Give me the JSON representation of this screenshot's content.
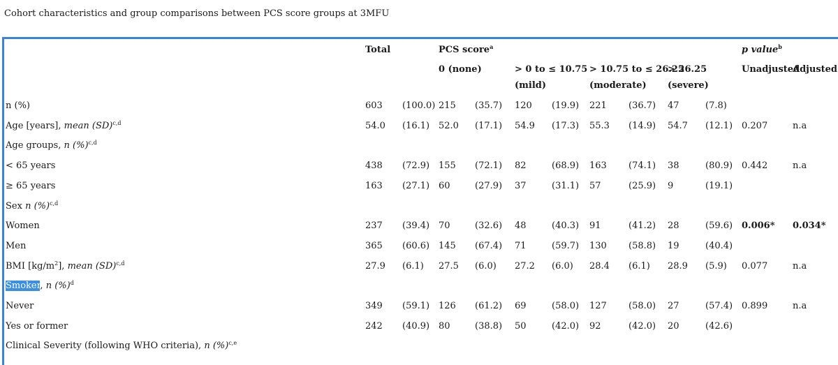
{
  "caption": "Cohort characteristics and group comparisons between PCS score groups at 3MFU",
  "header": {
    "total": "Total",
    "pcs_score": "PCS score",
    "pcs_score_sup": "a",
    "none": "0 (none)",
    "mild_range": "> 0 to ≤ 10.75",
    "mild": "(mild)",
    "moderate_range": "> 10.75 to ≤ 26.25",
    "moderate": "(moderate)",
    "severe_range": "> 26.25",
    "severe": "(severe)",
    "pvalue": "p value",
    "pvalue_sup": "b",
    "unadjusted": "Unadjusted",
    "adjusted": "Adjusted"
  },
  "rows": [
    {
      "label": "n (%)",
      "label_italic": "",
      "sup": "",
      "cells": [
        "603",
        "(100.0)",
        "215",
        "(35.7)",
        "120",
        "(19.9)",
        "221",
        "(36.7)",
        "47",
        "(7.8)",
        "",
        ""
      ]
    },
    {
      "label": "Age [years], ",
      "label_italic": "mean (SD)",
      "sup": "c,d",
      "cells": [
        "54.0",
        "(16.1)",
        "52.0",
        "(17.1)",
        "54.9",
        "(17.3)",
        "55.3",
        "(14.9)",
        "54.7",
        "(12.1)",
        "0.207",
        "n.a"
      ]
    },
    {
      "label": "Age groups, ",
      "label_italic": "n (%)",
      "sup": "c,d",
      "cells": [
        "",
        "",
        "",
        "",
        "",
        "",
        "",
        "",
        "",
        "",
        "",
        ""
      ]
    },
    {
      "label": " < 65 years",
      "label_italic": "",
      "sup": "",
      "cells": [
        "438",
        "(72.9)",
        "155",
        "(72.1)",
        "82",
        "(68.9)",
        "163",
        "(74.1)",
        "38",
        "(80.9)",
        "0.442",
        "n.a"
      ]
    },
    {
      "label": " ≥ 65 years",
      "label_italic": "",
      "sup": "",
      "cells": [
        "163",
        "(27.1)",
        "60",
        "(27.9)",
        "37",
        "(31.1)",
        "57",
        "(25.9)",
        "9",
        "(19.1)",
        "",
        ""
      ]
    },
    {
      "label": "Sex ",
      "label_italic": "n (%)",
      "sup": "c,d",
      "cells": [
        "",
        "",
        "",
        "",
        "",
        "",
        "",
        "",
        "",
        "",
        "",
        ""
      ]
    },
    {
      "label": " Women",
      "label_italic": "",
      "sup": "",
      "cells": [
        "237",
        "(39.4)",
        "70",
        "(32.6)",
        "48",
        "(40.3)",
        "91",
        "(41.2)",
        "28",
        "(59.6)",
        "0.006*",
        "0.034*"
      ]
    },
    {
      "label": " Men",
      "label_italic": "",
      "sup": "",
      "cells": [
        "365",
        "(60.6)",
        "145",
        "(67.4)",
        "71",
        "(59.7)",
        "130",
        "(58.8)",
        "19",
        "(40.4)",
        "",
        ""
      ]
    },
    {
      "label": "BMI [kg/m",
      "label_mid_sup": "2",
      "label_after": "], ",
      "label_italic": "mean (SD)",
      "sup": "c,d",
      "cells": [
        "27.9",
        "(6.1)",
        "27.5",
        "(6.0)",
        "27.2",
        "(6.0)",
        "28.4",
        "(6.1)",
        "28.9",
        "(5.9)",
        "0.077",
        "n.a"
      ]
    },
    {
      "label": "Smoker",
      "label_after": ", ",
      "label_italic": "n (%)",
      "sup": "d",
      "highlight": true,
      "cells": [
        "",
        "",
        "",
        "",
        "",
        "",
        "",
        "",
        "",
        "",
        "",
        ""
      ]
    },
    {
      "label": " Never",
      "label_italic": "",
      "sup": "",
      "cells": [
        "349",
        "(59.1)",
        "126",
        "(61.2)",
        "69",
        "(58.0)",
        "127",
        "(58.0)",
        "27",
        "(57.4)",
        "0.899",
        "n.a"
      ]
    },
    {
      "label": " Yes or former",
      "label_italic": "",
      "sup": "",
      "cells": [
        "242",
        "(40.9)",
        "80",
        "(38.8)",
        "50",
        "(42.0)",
        "92",
        "(42.0)",
        "20",
        "(42.6)",
        "",
        ""
      ]
    },
    {
      "label": "Clinical Severity (following WHO criteria), ",
      "label_italic": "n (%)",
      "sup": "c,e",
      "cells": [
        "",
        "",
        "",
        "",
        "",
        "",
        "",
        "",
        "",
        "",
        "",
        ""
      ]
    }
  ],
  "bold_cells": [
    "0.006*",
    "0.034*"
  ]
}
